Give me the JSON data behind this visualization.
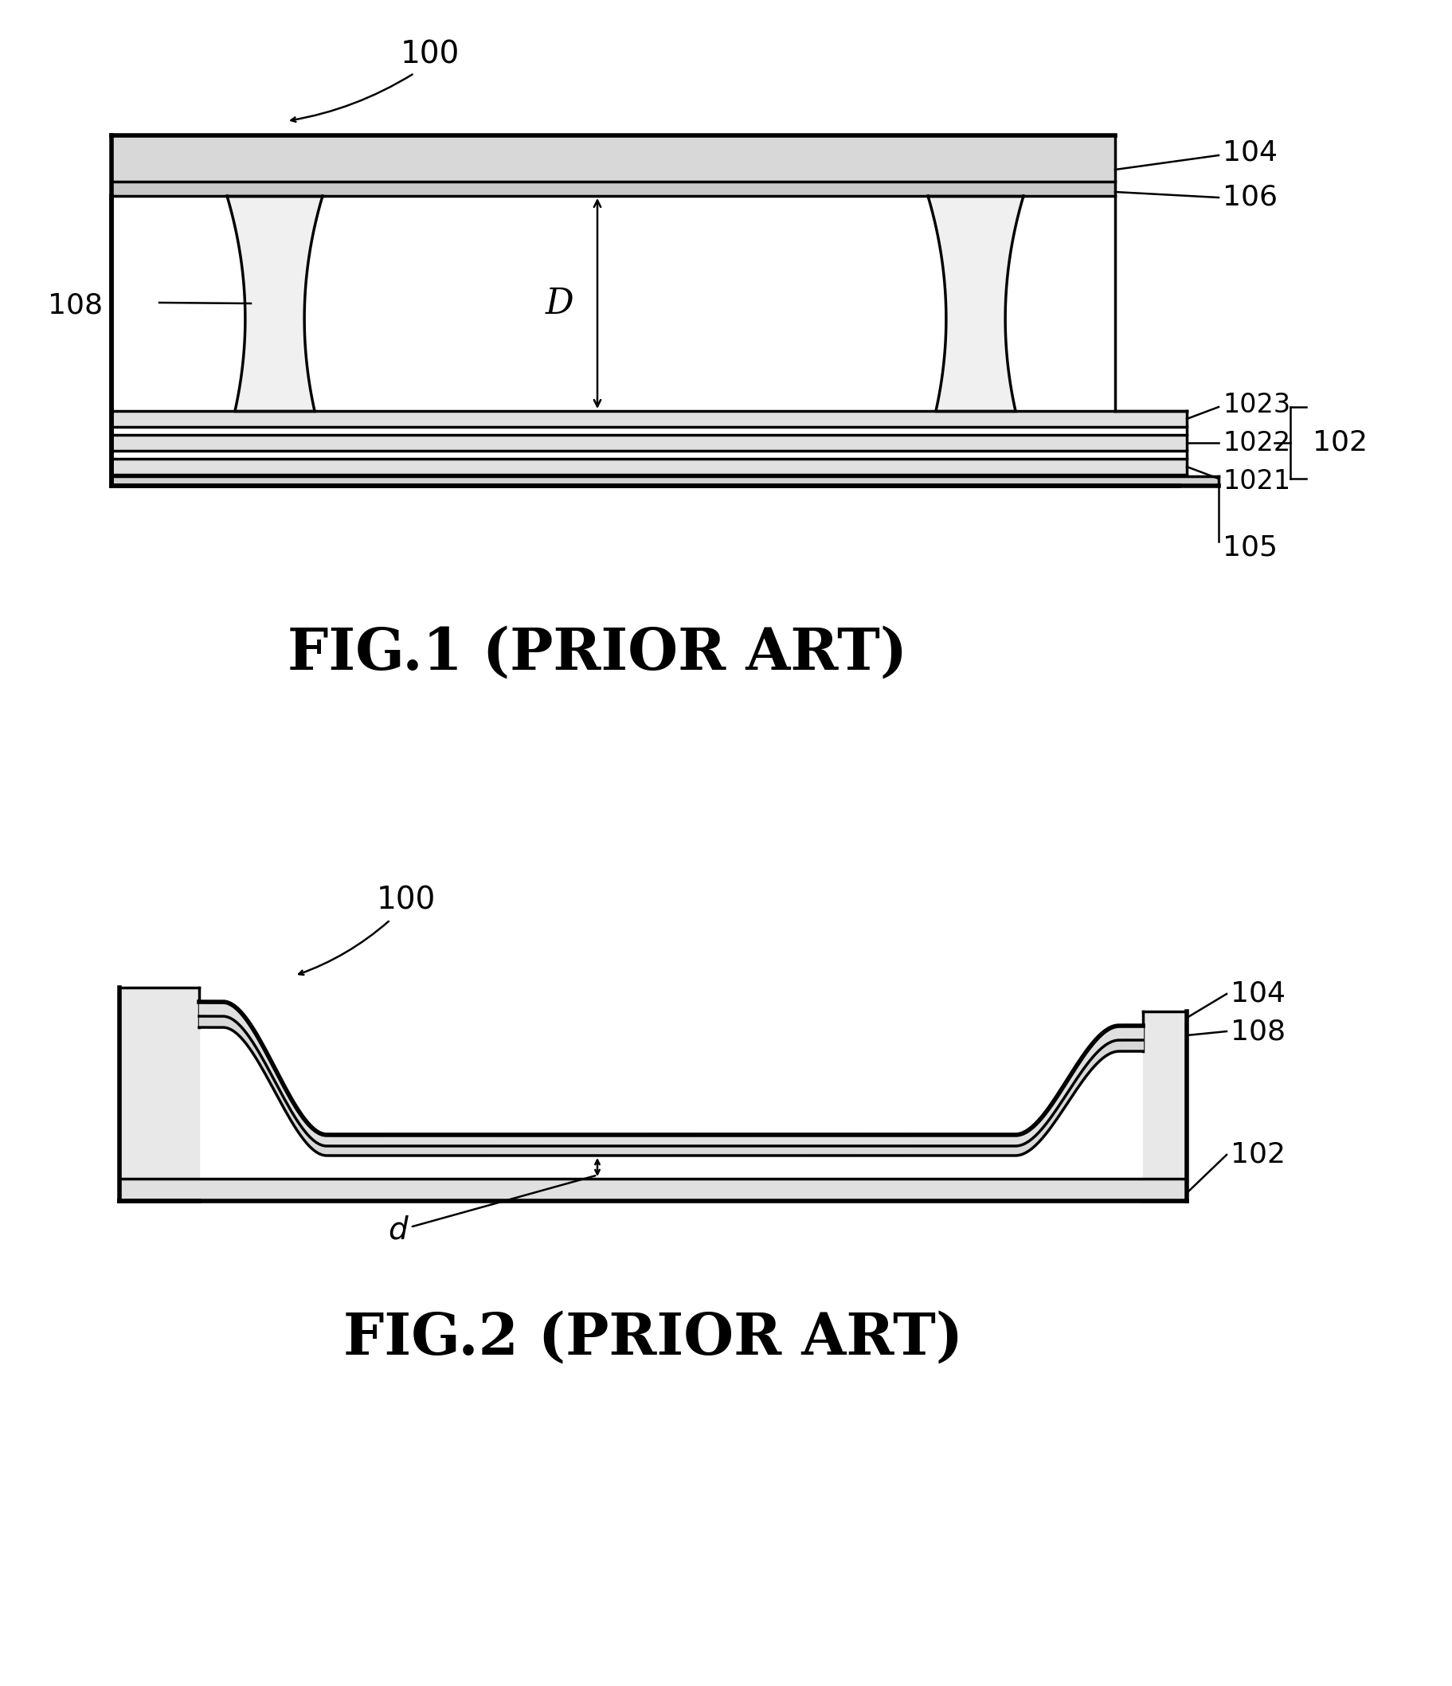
{
  "fig_title_1": "FIG.1 (PRIOR ART)",
  "fig_title_2": "FIG.2 (PRIOR ART)",
  "bg_color": "#ffffff",
  "line_color": "#000000"
}
